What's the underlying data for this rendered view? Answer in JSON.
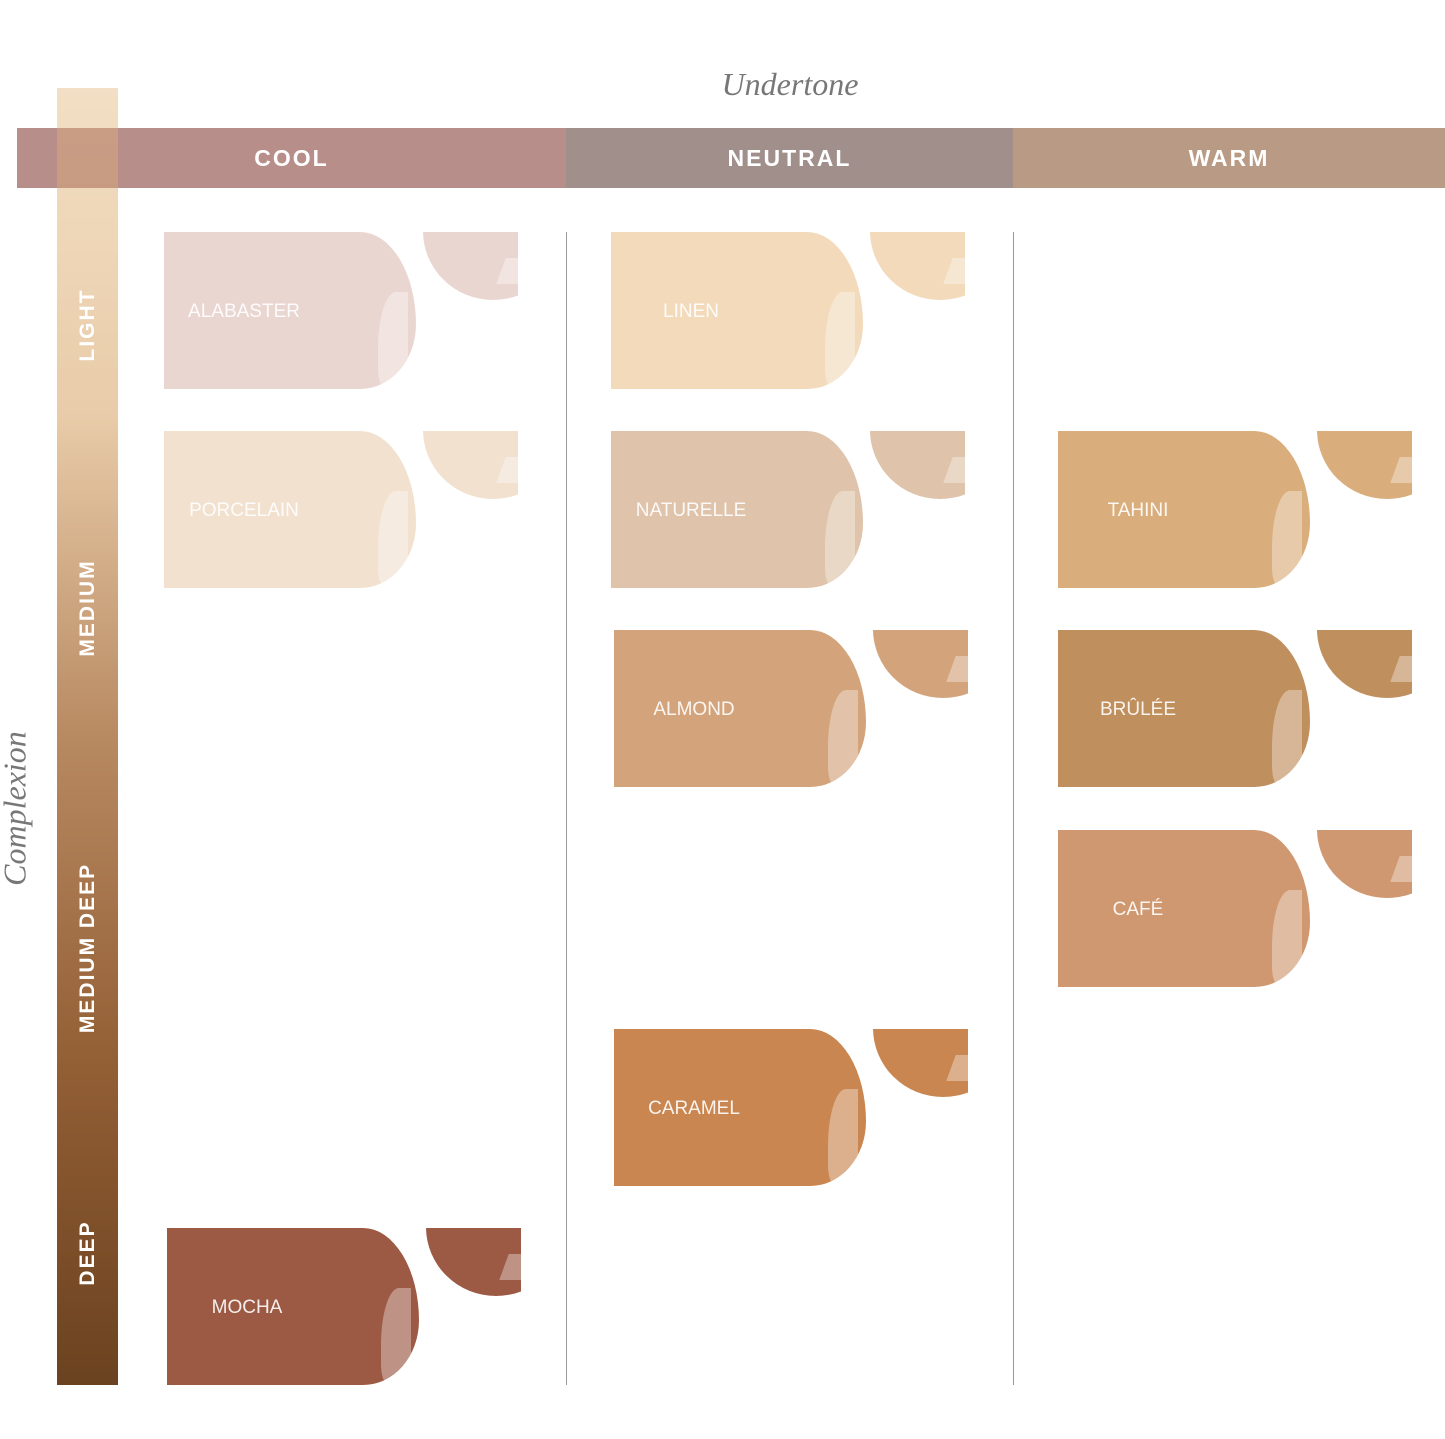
{
  "titles": {
    "undertone": "Undertone",
    "complexion": "Complexion"
  },
  "undertones": [
    {
      "label": "COOL",
      "color": "#b78e89"
    },
    {
      "label": "NEUTRAL",
      "color": "#a08f8b"
    },
    {
      "label": "WARM",
      "color": "#b99b85"
    }
  ],
  "complexions": [
    "LIGHT",
    "MEDIUM",
    "MEDIUM DEEP",
    "DEEP"
  ],
  "shades": [
    {
      "name": "ALABASTER",
      "undertone": "COOL",
      "complexion": "LIGHT",
      "color": "#ead6d1"
    },
    {
      "name": "PORCELAIN",
      "undertone": "COOL",
      "complexion": "MEDIUM",
      "color": "#f2e1cf"
    },
    {
      "name": "MOCHA",
      "undertone": "COOL",
      "complexion": "DEEP",
      "color": "#9c5a44"
    },
    {
      "name": "LINEN",
      "undertone": "NEUTRAL",
      "complexion": "LIGHT",
      "color": "#f2dabb"
    },
    {
      "name": "NATURELLE",
      "undertone": "NEUTRAL",
      "complexion": "MEDIUM",
      "color": "#dfc3aa"
    },
    {
      "name": "ALMOND",
      "undertone": "NEUTRAL",
      "complexion": "MEDIUM",
      "color": "#d3a47c"
    },
    {
      "name": "CARAMEL",
      "undertone": "NEUTRAL",
      "complexion": "MEDIUM DEEP",
      "color": "#c98650"
    },
    {
      "name": "TAHINI",
      "undertone": "WARM",
      "complexion": "MEDIUM",
      "color": "#d9ae7c"
    },
    {
      "name": "BRÛLÉE",
      "undertone": "WARM",
      "complexion": "MEDIUM",
      "color": "#c08f5e"
    },
    {
      "name": "CAFÉ",
      "undertone": "WARM",
      "complexion": "MEDIUM DEEP",
      "color": "#cf9870"
    }
  ]
}
